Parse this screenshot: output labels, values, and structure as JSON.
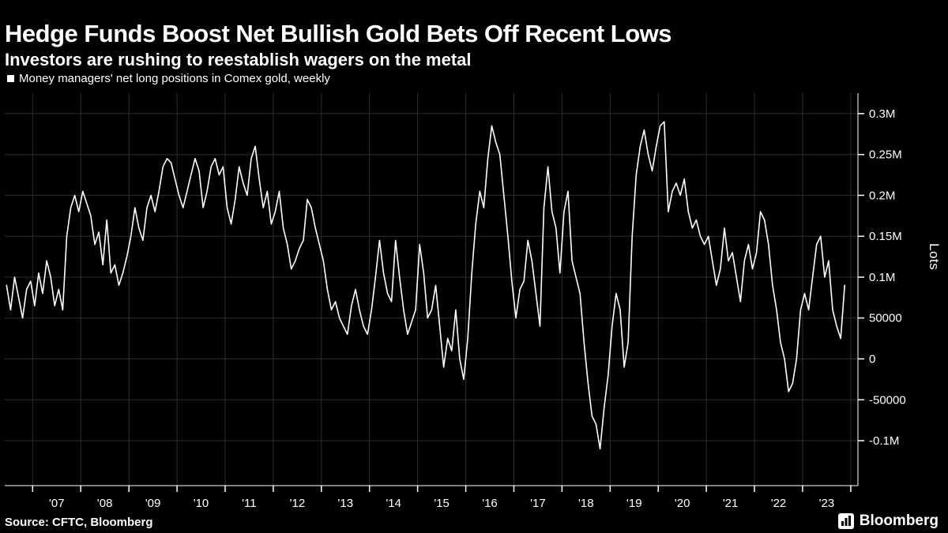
{
  "title": "Hedge Funds Boost Net Bullish Gold Bets Off Recent Lows",
  "subtitle": "Investors are rushing to reestablish wagers on the metal",
  "legend": {
    "label": "Money managers' net long positions in Comex gold, weekly",
    "swatch_color": "#ffffff"
  },
  "footer": {
    "source": "Source: CFTC, Bloomberg",
    "brand": "Bloomberg"
  },
  "chart_data": {
    "type": "line",
    "title": "Money managers' net long positions in Comex gold, weekly",
    "xlabel": "",
    "ylabel": "Lots",
    "legend_position": "top-left",
    "grid": true,
    "background": "#000000",
    "line_color": "#ffffff",
    "grid_color": "#2e2e2e",
    "axis_color": "#ffffff",
    "text_color": "#ffffff",
    "xlim": [
      2006.42,
      2024.15
    ],
    "ylim": [
      -155000,
      325000
    ],
    "x_start_year": 2006.4583,
    "x_step_years": 0.0833333,
    "note": "weekly series estimated from chart at monthly resolution, values in lots",
    "x_gridline_years": [
      2007,
      2008,
      2009,
      2010,
      2011,
      2012,
      2013,
      2014,
      2015,
      2016,
      2017,
      2018,
      2019,
      2020,
      2021,
      2022,
      2023,
      2024
    ],
    "x_ticks": [
      {
        "year": 2007,
        "label": "'07"
      },
      {
        "year": 2008,
        "label": "'08"
      },
      {
        "year": 2009,
        "label": "'09"
      },
      {
        "year": 2010,
        "label": "'10"
      },
      {
        "year": 2011,
        "label": "'11"
      },
      {
        "year": 2012,
        "label": "'12"
      },
      {
        "year": 2013,
        "label": "'13"
      },
      {
        "year": 2014,
        "label": "'14"
      },
      {
        "year": 2015,
        "label": "'15"
      },
      {
        "year": 2016,
        "label": "'16"
      },
      {
        "year": 2017,
        "label": "'17"
      },
      {
        "year": 2018,
        "label": "'18"
      },
      {
        "year": 2019,
        "label": "'19"
      },
      {
        "year": 2020,
        "label": "'20"
      },
      {
        "year": 2021,
        "label": "'21"
      },
      {
        "year": 2022,
        "label": "'22"
      },
      {
        "year": 2023,
        "label": "'23"
      }
    ],
    "y_ticks": [
      {
        "value": -100000,
        "label": "-0.1M"
      },
      {
        "value": -50000,
        "label": "-50000"
      },
      {
        "value": 0,
        "label": "0"
      },
      {
        "value": 50000,
        "label": "50000"
      },
      {
        "value": 100000,
        "label": "0.1M"
      },
      {
        "value": 150000,
        "label": "0.15M"
      },
      {
        "value": 200000,
        "label": "0.2M"
      },
      {
        "value": 250000,
        "label": "0.25M"
      },
      {
        "value": 300000,
        "label": "0.3M"
      }
    ],
    "values": [
      90000,
      60000,
      100000,
      75000,
      50000,
      85000,
      95000,
      65000,
      105000,
      80000,
      120000,
      100000,
      65000,
      85000,
      60000,
      150000,
      185000,
      200000,
      180000,
      205000,
      190000,
      175000,
      140000,
      155000,
      115000,
      170000,
      105000,
      115000,
      90000,
      105000,
      125000,
      150000,
      185000,
      160000,
      145000,
      185000,
      200000,
      180000,
      205000,
      235000,
      245000,
      240000,
      220000,
      200000,
      185000,
      205000,
      225000,
      245000,
      230000,
      185000,
      205000,
      235000,
      245000,
      225000,
      235000,
      185000,
      165000,
      195000,
      235000,
      215000,
      200000,
      245000,
      260000,
      220000,
      185000,
      205000,
      165000,
      180000,
      205000,
      160000,
      140000,
      110000,
      120000,
      135000,
      145000,
      195000,
      185000,
      160000,
      140000,
      120000,
      85000,
      60000,
      70000,
      50000,
      40000,
      30000,
      65000,
      85000,
      60000,
      40000,
      30000,
      60000,
      100000,
      145000,
      105000,
      80000,
      70000,
      145000,
      100000,
      60000,
      30000,
      45000,
      60000,
      140000,
      105000,
      50000,
      60000,
      90000,
      40000,
      -10000,
      25000,
      10000,
      60000,
      0,
      -25000,
      25000,
      105000,
      165000,
      205000,
      185000,
      245000,
      285000,
      265000,
      250000,
      200000,
      150000,
      95000,
      50000,
      85000,
      95000,
      145000,
      120000,
      80000,
      40000,
      185000,
      235000,
      180000,
      160000,
      105000,
      180000,
      205000,
      120000,
      100000,
      80000,
      20000,
      -30000,
      -70000,
      -80000,
      -110000,
      -60000,
      -20000,
      40000,
      80000,
      60000,
      -10000,
      20000,
      150000,
      225000,
      260000,
      280000,
      250000,
      230000,
      260000,
      285000,
      290000,
      180000,
      205000,
      215000,
      200000,
      220000,
      180000,
      160000,
      170000,
      150000,
      140000,
      150000,
      120000,
      90000,
      110000,
      160000,
      120000,
      130000,
      100000,
      70000,
      120000,
      140000,
      110000,
      130000,
      180000,
      170000,
      140000,
      90000,
      60000,
      20000,
      0,
      -40000,
      -30000,
      0,
      60000,
      80000,
      60000,
      100000,
      140000,
      150000,
      100000,
      120000,
      60000,
      40000,
      25000,
      90000
    ]
  }
}
